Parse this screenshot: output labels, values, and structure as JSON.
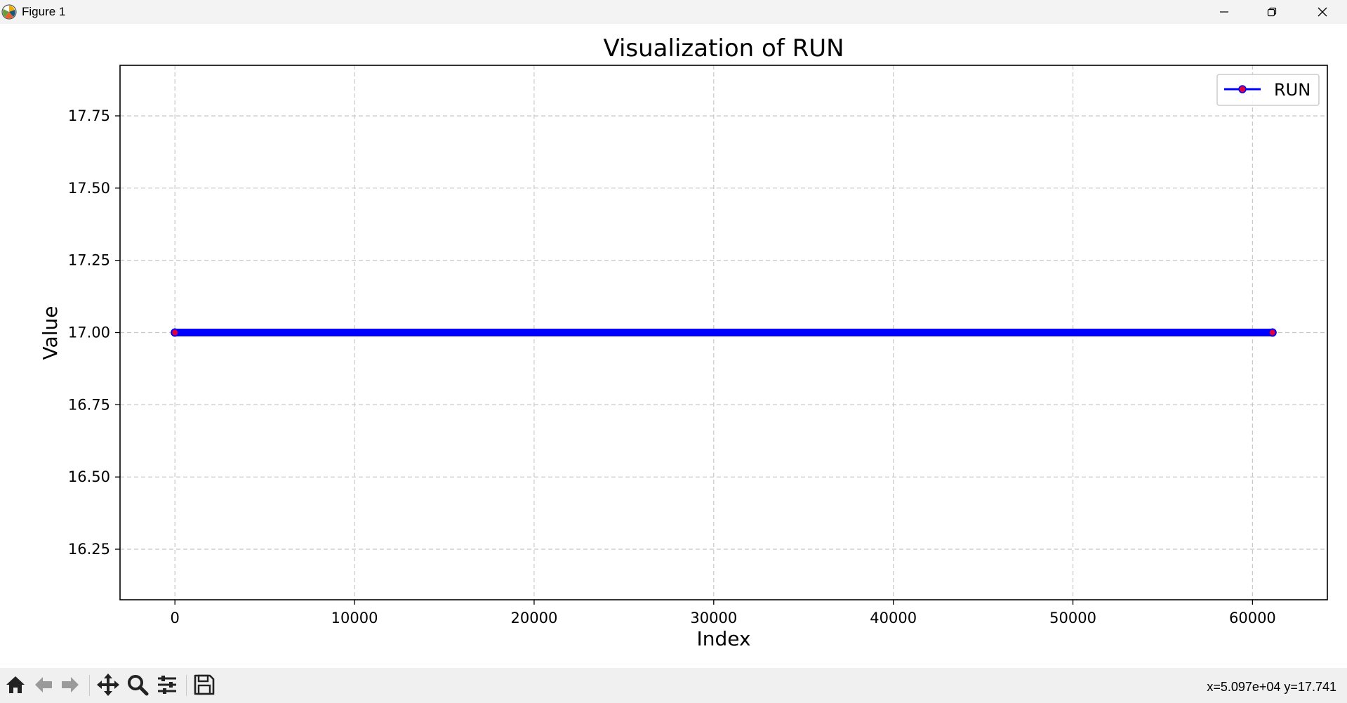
{
  "window": {
    "title": "Figure 1",
    "controls": [
      "minimize-icon",
      "restore-icon",
      "close-icon"
    ]
  },
  "toolbar": {
    "tools": [
      {
        "name": "home-button",
        "icon": "home-icon"
      },
      {
        "name": "back-button",
        "icon": "arrow-left-icon"
      },
      {
        "name": "forward-button",
        "icon": "arrow-right-icon"
      },
      {
        "name": "pan-button",
        "icon": "move-icon"
      },
      {
        "name": "zoom-button",
        "icon": "magnifier-icon"
      },
      {
        "name": "configure-subplots-button",
        "icon": "sliders-icon"
      },
      {
        "name": "save-button",
        "icon": "floppy-disk-icon"
      }
    ],
    "coords_readout": "x=5.097e+04 y=17.741"
  },
  "chart_data": {
    "type": "line",
    "title": "Visualization of RUN",
    "xlabel": "Index",
    "ylabel": "Value",
    "xlim": [
      -3056,
      64166
    ],
    "ylim": [
      16.075,
      17.925
    ],
    "xticks": [
      0,
      10000,
      20000,
      30000,
      40000,
      50000,
      60000
    ],
    "xtick_labels": [
      "0",
      "10000",
      "20000",
      "30000",
      "40000",
      "50000",
      "60000"
    ],
    "yticks": [
      16.25,
      16.5,
      16.75,
      17.0,
      17.25,
      17.5,
      17.75
    ],
    "ytick_labels": [
      "16.25",
      "16.50",
      "16.75",
      "17.00",
      "17.25",
      "17.50",
      "17.75"
    ],
    "grid": true,
    "grid_style": "dashed",
    "legend": "top-right",
    "series": [
      {
        "name": "RUN",
        "x_start": 0,
        "x_end": 61110,
        "values_constant": 17.0,
        "line_color": "#0000ff",
        "marker_color": "#e0003a",
        "marker": "o"
      }
    ]
  }
}
